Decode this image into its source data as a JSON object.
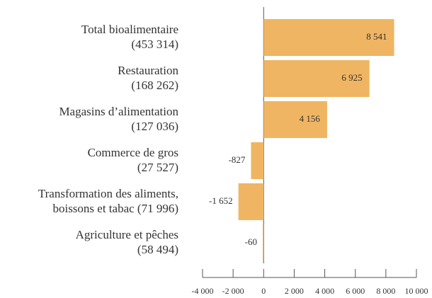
{
  "chart_data": {
    "type": "hbar",
    "categories": [
      [
        "Total bioalimentaire",
        "(453 314)"
      ],
      [
        "Restauration",
        "(168 262)"
      ],
      [
        "Magasins d’alimentation",
        "(127 036)"
      ],
      [
        "Commerce de gros",
        "(27 527)"
      ],
      [
        "Transformation des aliments,",
        "boissons et tabac (71 996)"
      ],
      [
        "Agriculture et pêches",
        "(58 494)"
      ]
    ],
    "values": [
      8541,
      6925,
      4156,
      -827,
      -1652,
      -60
    ],
    "value_labels": [
      "8 541",
      "6 925",
      "4 156",
      "-827",
      "-1 652",
      "-60"
    ],
    "color": "#f0b562",
    "xlim": [
      -4000,
      10000
    ],
    "xticks": [
      {
        "value": -4000,
        "label": "-4 000"
      },
      {
        "value": -2000,
        "label": "-2 000"
      },
      0,
      {
        "value": 2000,
        "label": "2 000"
      },
      {
        "value": 4000,
        "label": "4 000"
      },
      {
        "value": 6000,
        "label": "6 000"
      },
      {
        "value": 8000,
        "label": "8 000"
      },
      {
        "value": 10000,
        "label": "10 000"
      }
    ]
  }
}
